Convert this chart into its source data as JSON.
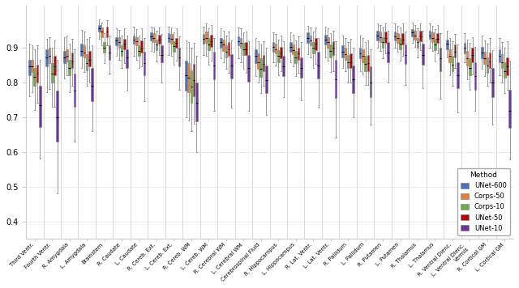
{
  "categories": [
    "Third Ventr.",
    "Fourth Ventr.",
    "R. Amygdala",
    "L. Amygdala",
    "Brainstem",
    "R. Caudate",
    "L. Caudate",
    "R. Cereb. Ext.",
    "L. Cereb. Ext.",
    "R. Cereb. WM",
    "L. Cereb. WM",
    "R. Cerebral WM",
    "L. Cerebral WM",
    "Cerebrospinal Fluid",
    "R. Hippocampus",
    "L. Hippocampus",
    "R. Lat. Ventr.",
    "L. Lat. Ventr.",
    "R. Pallidum",
    "L. Pallidum",
    "R. Putamen",
    "L. Putamen",
    "R. Thalamus",
    "L. Thalamus",
    "R. Ventral Dienc.",
    "L. Ventral Dienc.\nVermis",
    "R. Cortical GM",
    "L. Cortical GM"
  ],
  "methods": [
    "UNet-600",
    "Corps-50",
    "Corps-10",
    "UNet-50",
    "UNet-10"
  ],
  "colors": [
    "#4472c4",
    "#ed7d31",
    "#70ad47",
    "#c00000",
    "#7030a0"
  ],
  "ylim": [
    0.35,
    1.02
  ],
  "yticks": [
    0.4,
    0.5,
    0.6,
    0.7,
    0.8,
    0.9
  ],
  "legend_title": "Method",
  "boxes": {
    "Third Ventr.": {
      "UNet-600": [
        0.76,
        0.82,
        0.845,
        0.865,
        0.91
      ],
      "Corps-50": [
        0.77,
        0.83,
        0.845,
        0.865,
        0.905
      ],
      "Corps-10": [
        0.72,
        0.79,
        0.815,
        0.84,
        0.895
      ],
      "UNet-50": [
        0.74,
        0.8,
        0.825,
        0.85,
        0.905
      ],
      "UNet-10": [
        0.58,
        0.67,
        0.735,
        0.79,
        0.865
      ]
    },
    "Fourth Ventr.": {
      "UNet-600": [
        0.77,
        0.845,
        0.87,
        0.895,
        0.925
      ],
      "Corps-50": [
        0.78,
        0.855,
        0.875,
        0.9,
        0.93
      ],
      "Corps-10": [
        0.73,
        0.8,
        0.825,
        0.855,
        0.9
      ],
      "UNet-50": [
        0.73,
        0.82,
        0.845,
        0.875,
        0.92
      ],
      "UNet-10": [
        0.48,
        0.63,
        0.7,
        0.775,
        0.865
      ]
    },
    "R. Amygdala": {
      "UNet-600": [
        0.81,
        0.855,
        0.87,
        0.89,
        0.93
      ],
      "Corps-50": [
        0.82,
        0.86,
        0.875,
        0.895,
        0.935
      ],
      "Corps-10": [
        0.77,
        0.82,
        0.84,
        0.865,
        0.91
      ],
      "UNet-50": [
        0.79,
        0.84,
        0.86,
        0.885,
        0.925
      ],
      "UNet-10": [
        0.63,
        0.73,
        0.775,
        0.825,
        0.895
      ]
    },
    "L. Amygdala": {
      "UNet-600": [
        0.84,
        0.875,
        0.89,
        0.91,
        0.95
      ],
      "Corps-50": [
        0.83,
        0.87,
        0.885,
        0.905,
        0.945
      ],
      "Corps-10": [
        0.79,
        0.835,
        0.855,
        0.88,
        0.925
      ],
      "UNet-50": [
        0.8,
        0.845,
        0.865,
        0.89,
        0.93
      ],
      "UNet-10": [
        0.66,
        0.745,
        0.79,
        0.84,
        0.905
      ]
    },
    "Brainstem": {
      "UNet-600": [
        0.925,
        0.945,
        0.955,
        0.965,
        0.98
      ],
      "Corps-50": [
        0.905,
        0.93,
        0.945,
        0.958,
        0.972
      ],
      "Corps-10": [
        0.855,
        0.885,
        0.9,
        0.915,
        0.94
      ],
      "UNet-50": [
        0.905,
        0.93,
        0.945,
        0.96,
        0.978
      ],
      "UNet-10": [
        0.825,
        0.865,
        0.885,
        0.905,
        0.935
      ]
    },
    "R. Caudate": {
      "UNet-600": [
        0.875,
        0.905,
        0.92,
        0.93,
        0.955
      ],
      "Corps-50": [
        0.865,
        0.9,
        0.915,
        0.93,
        0.95
      ],
      "Corps-10": [
        0.84,
        0.875,
        0.89,
        0.905,
        0.935
      ],
      "UNet-50": [
        0.855,
        0.895,
        0.91,
        0.925,
        0.955
      ],
      "UNet-10": [
        0.775,
        0.84,
        0.87,
        0.895,
        0.935
      ]
    },
    "L. Caudate": {
      "UNet-600": [
        0.875,
        0.91,
        0.922,
        0.935,
        0.96
      ],
      "Corps-50": [
        0.865,
        0.905,
        0.917,
        0.93,
        0.952
      ],
      "Corps-10": [
        0.84,
        0.875,
        0.89,
        0.905,
        0.935
      ],
      "UNet-50": [
        0.845,
        0.885,
        0.9,
        0.92,
        0.955
      ],
      "UNet-10": [
        0.745,
        0.82,
        0.855,
        0.888,
        0.928
      ]
    },
    "R. Cereb. Ext.": {
      "UNet-600": [
        0.89,
        0.92,
        0.932,
        0.942,
        0.96
      ],
      "Corps-50": [
        0.888,
        0.915,
        0.928,
        0.94,
        0.958
      ],
      "Corps-10": [
        0.86,
        0.893,
        0.908,
        0.922,
        0.948
      ],
      "UNet-50": [
        0.878,
        0.91,
        0.923,
        0.936,
        0.958
      ],
      "UNet-10": [
        0.8,
        0.856,
        0.878,
        0.905,
        0.938
      ]
    },
    "L. Cereb. Ext.": {
      "UNet-600": [
        0.878,
        0.915,
        0.928,
        0.94,
        0.96
      ],
      "Corps-50": [
        0.875,
        0.91,
        0.924,
        0.938,
        0.958
      ],
      "Corps-10": [
        0.85,
        0.888,
        0.903,
        0.918,
        0.944
      ],
      "UNet-50": [
        0.862,
        0.898,
        0.912,
        0.928,
        0.955
      ],
      "UNet-10": [
        0.778,
        0.845,
        0.87,
        0.898,
        0.932
      ]
    },
    "R. Cereb. WM": {
      "UNet-600": [
        0.7,
        0.775,
        0.82,
        0.862,
        0.92
      ],
      "Corps-50": [
        0.69,
        0.77,
        0.812,
        0.855,
        0.915
      ],
      "Corps-10": [
        0.66,
        0.742,
        0.788,
        0.835,
        0.898
      ],
      "UNet-50": [
        0.68,
        0.76,
        0.805,
        0.852,
        0.912
      ],
      "UNet-10": [
        0.6,
        0.688,
        0.74,
        0.8,
        0.875
      ]
    },
    "L. Cereb. WM": {
      "UNet-600": [
        0.878,
        0.91,
        0.925,
        0.938,
        0.96
      ],
      "Corps-50": [
        0.875,
        0.912,
        0.928,
        0.945,
        0.968
      ],
      "Corps-10": [
        0.85,
        0.892,
        0.908,
        0.928,
        0.955
      ],
      "UNet-50": [
        0.862,
        0.902,
        0.918,
        0.936,
        0.965
      ],
      "UNet-10": [
        0.718,
        0.808,
        0.848,
        0.888,
        0.928
      ]
    },
    "R. Cerebral WM": {
      "UNet-600": [
        0.868,
        0.898,
        0.915,
        0.928,
        0.955
      ],
      "Corps-50": [
        0.858,
        0.89,
        0.908,
        0.922,
        0.948
      ],
      "Corps-10": [
        0.838,
        0.872,
        0.888,
        0.905,
        0.935
      ],
      "UNet-50": [
        0.828,
        0.875,
        0.895,
        0.915,
        0.945
      ],
      "UNet-10": [
        0.728,
        0.81,
        0.848,
        0.88,
        0.92
      ]
    },
    "L. Cerebral WM": {
      "UNet-600": [
        0.868,
        0.905,
        0.918,
        0.932,
        0.958
      ],
      "Corps-50": [
        0.858,
        0.898,
        0.912,
        0.928,
        0.955
      ],
      "Corps-10": [
        0.838,
        0.878,
        0.895,
        0.912,
        0.942
      ],
      "UNet-50": [
        0.828,
        0.878,
        0.895,
        0.915,
        0.945
      ],
      "UNet-10": [
        0.718,
        0.802,
        0.84,
        0.878,
        0.918
      ]
    },
    "Cerebrospinal Fluid": {
      "UNet-600": [
        0.818,
        0.855,
        0.875,
        0.895,
        0.928
      ],
      "Corps-50": [
        0.798,
        0.838,
        0.858,
        0.882,
        0.918
      ],
      "Corps-10": [
        0.768,
        0.815,
        0.838,
        0.868,
        0.908
      ],
      "UNet-50": [
        0.79,
        0.832,
        0.852,
        0.878,
        0.918
      ],
      "UNet-10": [
        0.705,
        0.768,
        0.805,
        0.848,
        0.898
      ]
    },
    "R. Hippocampus": {
      "UNet-600": [
        0.858,
        0.888,
        0.902,
        0.915,
        0.942
      ],
      "Corps-50": [
        0.848,
        0.882,
        0.895,
        0.91,
        0.938
      ],
      "Corps-10": [
        0.82,
        0.858,
        0.875,
        0.892,
        0.922
      ],
      "UNet-50": [
        0.832,
        0.868,
        0.885,
        0.902,
        0.935
      ],
      "UNet-10": [
        0.758,
        0.818,
        0.845,
        0.875,
        0.918
      ]
    },
    "L. Hippocampus": {
      "UNet-600": [
        0.858,
        0.888,
        0.902,
        0.915,
        0.942
      ],
      "Corps-50": [
        0.845,
        0.88,
        0.893,
        0.908,
        0.936
      ],
      "Corps-10": [
        0.818,
        0.855,
        0.872,
        0.89,
        0.92
      ],
      "UNet-50": [
        0.828,
        0.865,
        0.882,
        0.9,
        0.932
      ],
      "UNet-10": [
        0.748,
        0.812,
        0.84,
        0.872,
        0.915
      ]
    },
    "R. Lat. Ventr.": {
      "UNet-600": [
        0.88,
        0.912,
        0.928,
        0.942,
        0.962
      ],
      "Corps-50": [
        0.872,
        0.905,
        0.92,
        0.935,
        0.958
      ],
      "Corps-10": [
        0.842,
        0.882,
        0.898,
        0.915,
        0.945
      ],
      "UNet-50": [
        0.852,
        0.892,
        0.91,
        0.928,
        0.958
      ],
      "UNet-10": [
        0.728,
        0.81,
        0.848,
        0.888,
        0.928
      ]
    },
    "L. Lat. Ventr.": {
      "UNet-600": [
        0.872,
        0.908,
        0.922,
        0.936,
        0.96
      ],
      "Corps-50": [
        0.862,
        0.9,
        0.915,
        0.93,
        0.955
      ],
      "Corps-10": [
        0.83,
        0.872,
        0.89,
        0.908,
        0.94
      ],
      "UNet-50": [
        0.832,
        0.878,
        0.898,
        0.918,
        0.948
      ],
      "UNet-10": [
        0.64,
        0.755,
        0.808,
        0.865,
        0.918
      ]
    },
    "R. Pallidum": {
      "UNet-600": [
        0.84,
        0.872,
        0.888,
        0.905,
        0.935
      ],
      "Corps-50": [
        0.832,
        0.865,
        0.88,
        0.898,
        0.928
      ],
      "Corps-10": [
        0.8,
        0.84,
        0.858,
        0.878,
        0.915
      ],
      "UNet-50": [
        0.8,
        0.84,
        0.858,
        0.882,
        0.925
      ],
      "UNet-10": [
        0.698,
        0.768,
        0.808,
        0.848,
        0.898
      ]
    },
    "L. Pallidum": {
      "UNet-600": [
        0.832,
        0.868,
        0.882,
        0.9,
        0.935
      ],
      "Corps-50": [
        0.822,
        0.858,
        0.875,
        0.895,
        0.928
      ],
      "Corps-10": [
        0.792,
        0.832,
        0.852,
        0.875,
        0.915
      ],
      "UNet-50": [
        0.792,
        0.832,
        0.855,
        0.878,
        0.92
      ],
      "UNet-10": [
        0.678,
        0.758,
        0.8,
        0.845,
        0.895
      ]
    },
    "R. Putamen": {
      "UNet-600": [
        0.898,
        0.92,
        0.935,
        0.948,
        0.968
      ],
      "Corps-50": [
        0.89,
        0.915,
        0.93,
        0.945,
        0.965
      ],
      "Corps-10": [
        0.868,
        0.898,
        0.915,
        0.93,
        0.958
      ],
      "UNet-50": [
        0.882,
        0.912,
        0.928,
        0.945,
        0.968
      ],
      "UNet-10": [
        0.8,
        0.858,
        0.885,
        0.915,
        0.948
      ]
    },
    "L. Putamen": {
      "UNet-600": [
        0.898,
        0.92,
        0.932,
        0.945,
        0.968
      ],
      "Corps-50": [
        0.888,
        0.912,
        0.926,
        0.94,
        0.962
      ],
      "Corps-10": [
        0.862,
        0.895,
        0.91,
        0.928,
        0.958
      ],
      "UNet-50": [
        0.875,
        0.908,
        0.922,
        0.94,
        0.968
      ],
      "UNet-10": [
        0.792,
        0.852,
        0.878,
        0.908,
        0.945
      ]
    },
    "R. Thalamus": {
      "UNet-600": [
        0.912,
        0.932,
        0.942,
        0.952,
        0.97
      ],
      "Corps-50": [
        0.902,
        0.922,
        0.935,
        0.948,
        0.965
      ],
      "Corps-10": [
        0.872,
        0.9,
        0.915,
        0.928,
        0.955
      ],
      "UNet-50": [
        0.892,
        0.918,
        0.932,
        0.948,
        0.968
      ],
      "UNet-10": [
        0.782,
        0.85,
        0.878,
        0.91,
        0.948
      ]
    },
    "L. Thalamus": {
      "UNet-600": [
        0.9,
        0.925,
        0.935,
        0.948,
        0.968
      ],
      "Corps-50": [
        0.89,
        0.915,
        0.928,
        0.942,
        0.962
      ],
      "Corps-10": [
        0.86,
        0.892,
        0.908,
        0.925,
        0.952
      ],
      "UNet-50": [
        0.882,
        0.912,
        0.924,
        0.94,
        0.965
      ],
      "UNet-10": [
        0.752,
        0.832,
        0.868,
        0.9,
        0.94
      ]
    },
    "R. Ventral Dienc.": {
      "UNet-600": [
        0.87,
        0.895,
        0.91,
        0.922,
        0.948
      ],
      "Corps-50": [
        0.82,
        0.858,
        0.875,
        0.895,
        0.928
      ],
      "Corps-10": [
        0.79,
        0.832,
        0.85,
        0.875,
        0.918
      ],
      "UNet-50": [
        0.842,
        0.872,
        0.888,
        0.908,
        0.938
      ],
      "UNet-10": [
        0.712,
        0.782,
        0.82,
        0.858,
        0.908
      ]
    },
    "L. Ventral Dienc.\nVermis": {
      "UNet-600": [
        0.858,
        0.882,
        0.898,
        0.912,
        0.94
      ],
      "Corps-50": [
        0.808,
        0.848,
        0.868,
        0.89,
        0.922
      ],
      "Corps-10": [
        0.778,
        0.82,
        0.84,
        0.868,
        0.912
      ],
      "UNet-50": [
        0.822,
        0.858,
        0.878,
        0.898,
        0.93
      ],
      "UNet-10": [
        0.718,
        0.778,
        0.818,
        0.858,
        0.902
      ]
    },
    "R. Cortical GM": {
      "UNet-600": [
        0.838,
        0.868,
        0.885,
        0.902,
        0.935
      ],
      "Corps-50": [
        0.818,
        0.852,
        0.868,
        0.888,
        0.92
      ],
      "Corps-10": [
        0.79,
        0.828,
        0.848,
        0.872,
        0.91
      ],
      "UNet-50": [
        0.8,
        0.842,
        0.86,
        0.885,
        0.928
      ],
      "UNet-10": [
        0.678,
        0.758,
        0.798,
        0.842,
        0.892
      ]
    },
    "L. Cortical GM": {
      "UNet-600": [
        0.82,
        0.858,
        0.875,
        0.895,
        0.928
      ],
      "Corps-50": [
        0.798,
        0.84,
        0.858,
        0.88,
        0.915
      ],
      "Corps-10": [
        0.768,
        0.812,
        0.832,
        0.858,
        0.9
      ],
      "UNet-50": [
        0.778,
        0.82,
        0.845,
        0.872,
        0.918
      ],
      "UNet-10": [
        0.578,
        0.668,
        0.718,
        0.778,
        0.862
      ]
    }
  }
}
